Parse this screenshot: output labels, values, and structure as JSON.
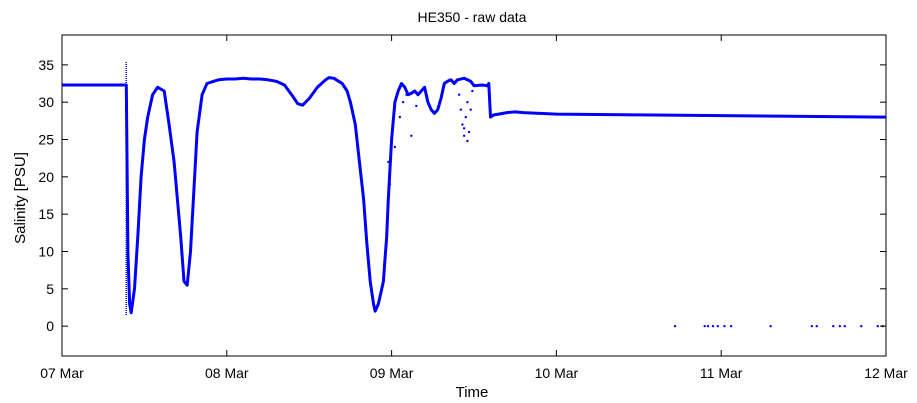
{
  "chart_data": {
    "type": "line",
    "title": "HE350 - raw data",
    "xlabel": "Time",
    "ylabel": "Salinity [PSU]",
    "x_ticks": [
      "07 Mar",
      "08 Mar",
      "09 Mar",
      "10 Mar",
      "11 Mar",
      "12 Mar"
    ],
    "y_ticks": [
      "0",
      "5",
      "10",
      "15",
      "20",
      "25",
      "30",
      "35"
    ],
    "xlim_days": [
      7,
      12
    ],
    "ylim": [
      -4,
      39
    ],
    "grid": false,
    "line_color": "#0000ff",
    "series": [
      {
        "x_days": [
          7.0,
          7.39,
          7.4,
          7.41,
          7.42,
          7.44,
          7.46,
          7.48,
          7.5,
          7.52,
          7.55,
          7.58,
          7.62,
          7.65,
          7.68,
          7.7,
          7.72,
          7.74,
          7.76,
          7.78,
          7.8,
          7.82,
          7.85,
          7.88,
          7.92,
          7.95,
          8.0,
          8.05,
          8.1,
          8.15,
          8.2,
          8.25,
          8.3,
          8.35,
          8.4,
          8.43,
          8.46,
          8.5,
          8.55,
          8.6,
          8.62,
          8.65,
          8.7,
          8.73,
          8.75,
          8.78,
          8.8,
          8.83,
          8.85,
          8.87,
          8.89,
          8.9,
          8.91,
          8.92,
          8.93,
          8.95,
          8.96,
          8.97,
          8.98,
          9.0,
          9.02,
          9.04,
          9.06,
          9.08,
          9.1,
          9.12,
          9.14,
          9.16,
          9.18,
          9.2,
          9.22,
          9.24,
          9.26,
          9.28,
          9.3,
          9.32,
          9.34,
          9.36,
          9.38,
          9.4,
          9.44,
          9.48,
          9.5,
          9.55,
          9.58,
          9.59,
          9.6,
          9.62,
          9.65,
          9.7,
          9.75,
          9.8,
          9.9,
          10.0,
          10.5,
          11.0,
          11.5,
          12.0
        ],
        "y": [
          32.3,
          32.3,
          10,
          3,
          1.8,
          5,
          12,
          20,
          25,
          28,
          31,
          32,
          31.5,
          27,
          22,
          17,
          12,
          6,
          5.5,
          10,
          18,
          26,
          31,
          32.5,
          32.8,
          33,
          33.1,
          33.1,
          33.2,
          33.1,
          33.1,
          33,
          32.8,
          32.3,
          30.8,
          29.8,
          29.6,
          30.5,
          32,
          33,
          33.3,
          33.2,
          32.5,
          31.5,
          30,
          27,
          23,
          17,
          11,
          6,
          3,
          2,
          2.5,
          3,
          4,
          6,
          9,
          12,
          17,
          25,
          30,
          31.5,
          32.5,
          32,
          31,
          31.2,
          31.5,
          31,
          31.5,
          32,
          30,
          29,
          28.5,
          29,
          30.5,
          32.5,
          32.8,
          33,
          32.5,
          33,
          33.2,
          32.8,
          32.2,
          32.3,
          32.2,
          32.5,
          28,
          28.3,
          28.4,
          28.6,
          28.7,
          28.6,
          28.5,
          28.4,
          28.3,
          28.2,
          28.1,
          28.0
        ]
      }
    ],
    "scatter_points": [
      {
        "x_days": 9.05,
        "y": 28
      },
      {
        "x_days": 9.07,
        "y": 30
      },
      {
        "x_days": 9.09,
        "y": 31
      },
      {
        "x_days": 9.12,
        "y": 25.5
      },
      {
        "x_days": 9.15,
        "y": 29.5
      },
      {
        "x_days": 9.02,
        "y": 24
      },
      {
        "x_days": 8.99,
        "y": 19
      },
      {
        "x_days": 8.98,
        "y": 22
      },
      {
        "x_days": 9.41,
        "y": 31
      },
      {
        "x_days": 9.42,
        "y": 29
      },
      {
        "x_days": 9.43,
        "y": 27
      },
      {
        "x_days": 9.44,
        "y": 25.5
      },
      {
        "x_days": 9.45,
        "y": 28
      },
      {
        "x_days": 9.46,
        "y": 30
      },
      {
        "x_days": 9.47,
        "y": 26
      },
      {
        "x_days": 9.48,
        "y": 29
      },
      {
        "x_days": 9.49,
        "y": 31.5
      },
      {
        "x_days": 9.44,
        "y": 26.5
      },
      {
        "x_days": 9.46,
        "y": 24.8
      },
      {
        "x_days": 10.72,
        "y": 0
      },
      {
        "x_days": 10.9,
        "y": 0
      },
      {
        "x_days": 10.92,
        "y": 0
      },
      {
        "x_days": 10.95,
        "y": 0
      },
      {
        "x_days": 10.98,
        "y": 0
      },
      {
        "x_days": 11.02,
        "y": 0
      },
      {
        "x_days": 11.06,
        "y": 0
      },
      {
        "x_days": 11.3,
        "y": 0
      },
      {
        "x_days": 11.55,
        "y": 0
      },
      {
        "x_days": 11.58,
        "y": 0
      },
      {
        "x_days": 11.68,
        "y": 0
      },
      {
        "x_days": 11.72,
        "y": 0
      },
      {
        "x_days": 11.75,
        "y": 0
      },
      {
        "x_days": 11.85,
        "y": 0
      },
      {
        "x_days": 11.95,
        "y": 0
      },
      {
        "x_days": 11.98,
        "y": 0
      }
    ],
    "spike": {
      "x_days": 7.39,
      "y_from": 1.5,
      "y_to": 35.5
    }
  }
}
